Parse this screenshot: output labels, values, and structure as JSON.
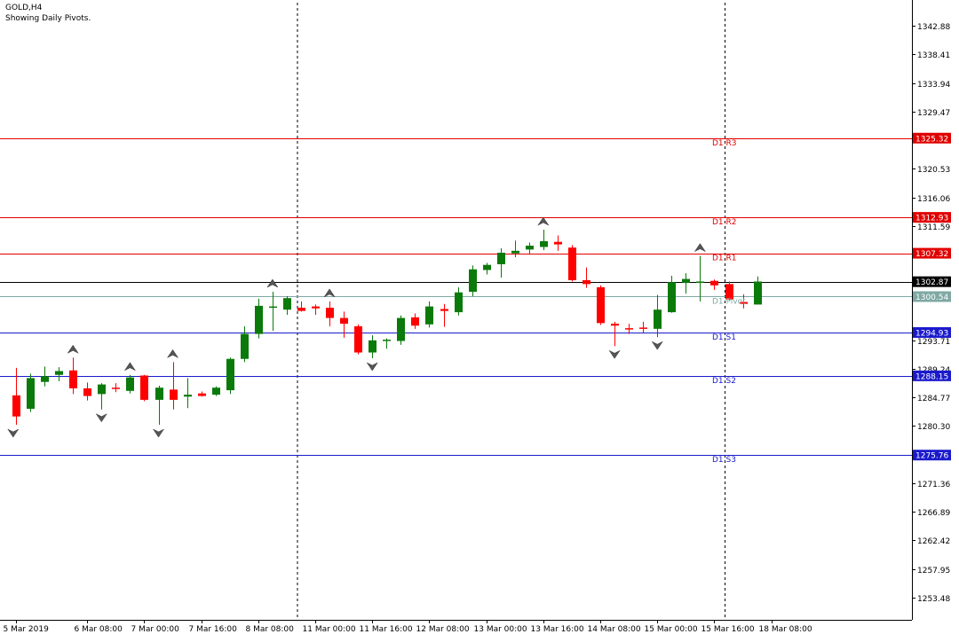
{
  "header": {
    "symbol": "GOLD,H4",
    "indicator": "Showing Daily Pivots."
  },
  "colors": {
    "background": "#ffffff",
    "bull": "#0a7a0a",
    "bear": "#ff0000",
    "resistance": "#e00000",
    "support": "#1a1acd",
    "pivot": "#7fa8a4",
    "current_price": "#000000",
    "axis": "#000000"
  },
  "chart_data": {
    "type": "candlestick",
    "title": "GOLD,H4",
    "subtitle": "Showing Daily Pivots.",
    "ylim": [
      1250,
      1346.5
    ],
    "y_ticks": [
      1342.88,
      1338.41,
      1333.94,
      1329.47,
      1320.53,
      1316.06,
      1311.59,
      1293.71,
      1289.24,
      1284.77,
      1280.3,
      1271.36,
      1266.89,
      1262.42,
      1257.95,
      1253.48
    ],
    "x_ticks": [
      {
        "label": "5 Mar 2019",
        "bar": 0
      },
      {
        "label": "6 Mar 08:00",
        "bar": 5
      },
      {
        "label": "7 Mar 00:00",
        "bar": 9
      },
      {
        "label": "7 Mar 16:00",
        "bar": 13
      },
      {
        "label": "8 Mar 08:00",
        "bar": 17
      },
      {
        "label": "11 Mar 00:00",
        "bar": 21
      },
      {
        "label": "11 Mar 16:00",
        "bar": 25
      },
      {
        "label": "12 Mar 08:00",
        "bar": 29
      },
      {
        "label": "13 Mar 00:00",
        "bar": 33
      },
      {
        "label": "13 Mar 16:00",
        "bar": 37
      },
      {
        "label": "14 Mar 08:00",
        "bar": 41
      },
      {
        "label": "15 Mar 00:00",
        "bar": 45
      },
      {
        "label": "15 Mar 16:00",
        "bar": 49
      },
      {
        "label": "18 Mar 08:00",
        "bar": 53
      }
    ],
    "session_separators_bar": [
      19.75,
      49.75
    ],
    "candles": [
      {
        "o": 1285.1,
        "h": 1289.4,
        "l": 1280.5,
        "c": 1281.8
      },
      {
        "o": 1283.0,
        "h": 1288.5,
        "l": 1282.5,
        "c": 1287.8
      },
      {
        "o": 1287.2,
        "h": 1289.6,
        "l": 1286.5,
        "c": 1288.1
      },
      {
        "o": 1288.3,
        "h": 1289.5,
        "l": 1287.3,
        "c": 1288.9
      },
      {
        "o": 1289.0,
        "h": 1291.0,
        "l": 1285.3,
        "c": 1286.2
      },
      {
        "o": 1286.2,
        "h": 1287.1,
        "l": 1284.3,
        "c": 1285.0
      },
      {
        "o": 1285.3,
        "h": 1287.0,
        "l": 1282.9,
        "c": 1286.8
      },
      {
        "o": 1286.3,
        "h": 1287.0,
        "l": 1285.6,
        "c": 1286.2
      },
      {
        "o": 1285.8,
        "h": 1288.3,
        "l": 1285.4,
        "c": 1287.9
      },
      {
        "o": 1288.2,
        "h": 1288.3,
        "l": 1284.2,
        "c": 1284.4
      },
      {
        "o": 1284.4,
        "h": 1286.6,
        "l": 1280.5,
        "c": 1286.3
      },
      {
        "o": 1286.0,
        "h": 1290.3,
        "l": 1282.9,
        "c": 1284.4
      },
      {
        "o": 1284.9,
        "h": 1287.8,
        "l": 1283.1,
        "c": 1285.2
      },
      {
        "o": 1285.4,
        "h": 1285.7,
        "l": 1284.9,
        "c": 1285.0
      },
      {
        "o": 1285.2,
        "h": 1286.5,
        "l": 1285.0,
        "c": 1286.3
      },
      {
        "o": 1285.9,
        "h": 1291.0,
        "l": 1285.3,
        "c": 1290.8
      },
      {
        "o": 1290.8,
        "h": 1295.9,
        "l": 1290.3,
        "c": 1294.7
      },
      {
        "o": 1294.7,
        "h": 1300.2,
        "l": 1294.0,
        "c": 1299.1
      },
      {
        "o": 1299.0,
        "h": 1301.3,
        "l": 1295.2,
        "c": 1299.0
      },
      {
        "o": 1298.5,
        "h": 1300.6,
        "l": 1297.7,
        "c": 1300.3
      },
      {
        "o": 1298.8,
        "h": 1299.8,
        "l": 1298.2,
        "c": 1298.3
      },
      {
        "o": 1299.0,
        "h": 1299.3,
        "l": 1297.7,
        "c": 1298.7
      },
      {
        "o": 1298.8,
        "h": 1299.8,
        "l": 1295.9,
        "c": 1297.2
      },
      {
        "o": 1297.2,
        "h": 1298.2,
        "l": 1294.1,
        "c": 1296.3
      },
      {
        "o": 1295.9,
        "h": 1296.2,
        "l": 1291.5,
        "c": 1291.8
      },
      {
        "o": 1291.8,
        "h": 1294.5,
        "l": 1290.9,
        "c": 1293.7
      },
      {
        "o": 1293.6,
        "h": 1294.0,
        "l": 1292.4,
        "c": 1293.8
      },
      {
        "o": 1293.6,
        "h": 1297.6,
        "l": 1293.0,
        "c": 1297.2
      },
      {
        "o": 1297.3,
        "h": 1297.9,
        "l": 1295.5,
        "c": 1296.0
      },
      {
        "o": 1296.2,
        "h": 1299.8,
        "l": 1295.7,
        "c": 1299.0
      },
      {
        "o": 1298.6,
        "h": 1299.4,
        "l": 1295.8,
        "c": 1298.3
      },
      {
        "o": 1298.1,
        "h": 1302.0,
        "l": 1297.6,
        "c": 1301.2
      },
      {
        "o": 1301.3,
        "h": 1305.4,
        "l": 1300.6,
        "c": 1304.8
      },
      {
        "o": 1304.7,
        "h": 1305.8,
        "l": 1304.0,
        "c": 1305.5
      },
      {
        "o": 1305.6,
        "h": 1308.1,
        "l": 1303.5,
        "c": 1307.4
      },
      {
        "o": 1307.3,
        "h": 1309.3,
        "l": 1306.7,
        "c": 1307.7
      },
      {
        "o": 1307.9,
        "h": 1309.0,
        "l": 1307.1,
        "c": 1308.5
      },
      {
        "o": 1308.3,
        "h": 1311.0,
        "l": 1307.8,
        "c": 1309.2
      },
      {
        "o": 1309.1,
        "h": 1310.1,
        "l": 1307.7,
        "c": 1308.7
      },
      {
        "o": 1308.2,
        "h": 1308.6,
        "l": 1302.9,
        "c": 1303.1
      },
      {
        "o": 1303.1,
        "h": 1305.1,
        "l": 1301.9,
        "c": 1302.5
      },
      {
        "o": 1302.0,
        "h": 1302.3,
        "l": 1296.1,
        "c": 1296.4
      },
      {
        "o": 1296.3,
        "h": 1296.6,
        "l": 1292.8,
        "c": 1296.0
      },
      {
        "o": 1295.6,
        "h": 1296.3,
        "l": 1294.7,
        "c": 1295.5
      },
      {
        "o": 1295.7,
        "h": 1296.6,
        "l": 1294.9,
        "c": 1295.5
      },
      {
        "o": 1295.5,
        "h": 1300.8,
        "l": 1294.2,
        "c": 1298.5
      },
      {
        "o": 1298.1,
        "h": 1303.8,
        "l": 1298.0,
        "c": 1302.8
      },
      {
        "o": 1302.7,
        "h": 1304.2,
        "l": 1301.0,
        "c": 1303.3
      },
      {
        "o": 1302.7,
        "h": 1306.9,
        "l": 1299.8,
        "c": 1302.9
      },
      {
        "o": 1303.0,
        "h": 1303.2,
        "l": 1301.6,
        "c": 1302.3
      },
      {
        "o": 1302.5,
        "h": 1302.9,
        "l": 1299.9,
        "c": 1300.1
      },
      {
        "o": 1299.7,
        "h": 1300.9,
        "l": 1298.7,
        "c": 1299.4
      },
      {
        "o": 1299.3,
        "h": 1303.7,
        "l": 1299.3,
        "c": 1302.9
      }
    ],
    "fractals": [
      {
        "bar": 4,
        "type": "up",
        "price": 1291.0
      },
      {
        "bar": 6,
        "type": "down",
        "price": 1282.9
      },
      {
        "bar": 8,
        "type": "up",
        "price": 1288.3
      },
      {
        "bar": 10,
        "type": "down",
        "price": 1280.5
      },
      {
        "bar": 11,
        "type": "up",
        "price": 1290.3
      },
      {
        "bar": 18,
        "type": "up",
        "price": 1301.3
      },
      {
        "bar": 22,
        "type": "up",
        "price": 1299.8
      },
      {
        "bar": 25,
        "type": "down",
        "price": 1290.9
      },
      {
        "bar": 37,
        "type": "up",
        "price": 1311.0
      },
      {
        "bar": 42,
        "type": "down",
        "price": 1292.8
      },
      {
        "bar": 45,
        "type": "down",
        "price": 1294.2
      },
      {
        "bar": 48,
        "type": "up",
        "price": 1306.9
      },
      {
        "bar": -0.2,
        "type": "down",
        "price": 1280.5
      }
    ],
    "pivot_levels": [
      {
        "name": "D1 R3",
        "value": 1325.32,
        "label": "1325.32",
        "kind": "resistance"
      },
      {
        "name": "D1 R2",
        "value": 1312.93,
        "label": "1312.93",
        "kind": "resistance"
      },
      {
        "name": "D1 R1",
        "value": 1307.32,
        "label": "1307.32",
        "kind": "resistance"
      },
      {
        "name": "D1 Pivot",
        "value": 1300.54,
        "label": "1300.54",
        "kind": "pivot"
      },
      {
        "name": "D1 S1",
        "value": 1294.93,
        "label": "1294.93",
        "kind": "support"
      },
      {
        "name": "D1 S2",
        "value": 1288.15,
        "label": "1288.15",
        "kind": "support"
      },
      {
        "name": "D1 S3",
        "value": 1275.76,
        "label": "1275.76",
        "kind": "support"
      }
    ],
    "current_price": {
      "value": 1302.87,
      "label": "1302.87"
    }
  }
}
